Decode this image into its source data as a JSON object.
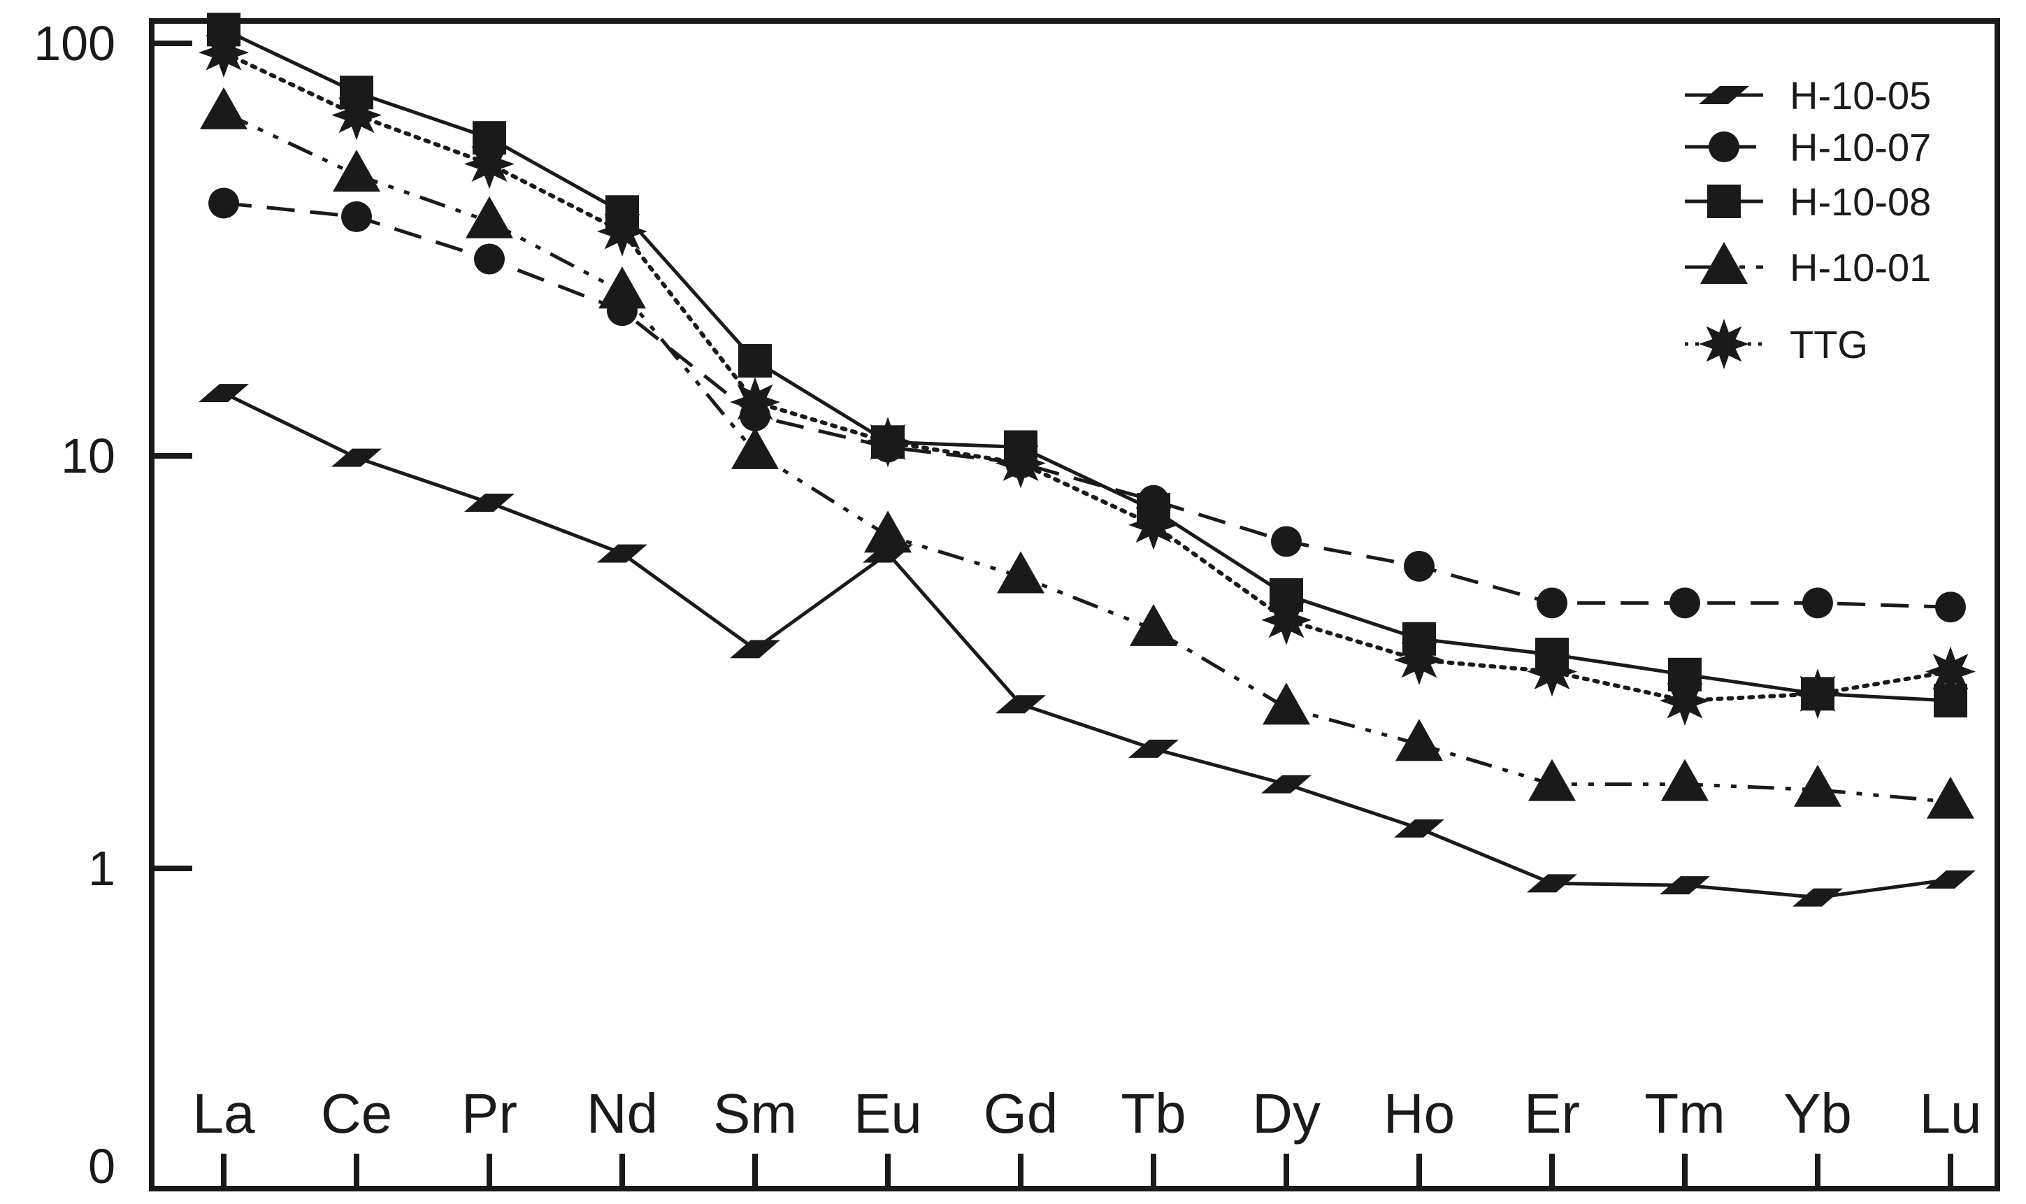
{
  "chart_data": {
    "type": "line",
    "y_scale": "log",
    "y_ticks": [
      {
        "label": "100",
        "value": 100
      },
      {
        "label": "10",
        "value": 10
      },
      {
        "label": "1",
        "value": 1
      },
      {
        "label": "0",
        "value": 0.1
      }
    ],
    "categories": [
      "La",
      "Ce",
      "Pr",
      "Nd",
      "Sm",
      "Eu",
      "Gd",
      "Tb",
      "Dy",
      "Ho",
      "Er",
      "Tm",
      "Yb",
      "Lu"
    ],
    "legend_position": "top-right",
    "grid": false,
    "series": [
      {
        "name": "H-10-05",
        "marker": "parallelogram",
        "line": "solid",
        "values": [
          14.2,
          9.9,
          7.7,
          5.8,
          3.4,
          5.8,
          2.5,
          1.95,
          1.6,
          1.25,
          0.92,
          0.91,
          0.85,
          0.94
        ]
      },
      {
        "name": "H-10-07",
        "marker": "circle",
        "line": "dashed",
        "values": [
          41,
          38,
          30,
          22.5,
          12.5,
          10.5,
          9.6,
          7.8,
          6.2,
          5.4,
          4.4,
          4.4,
          4.4,
          4.3
        ]
      },
      {
        "name": "H-10-08",
        "marker": "square",
        "line": "solid",
        "values": [
          108,
          76,
          59,
          39,
          17,
          10.8,
          10.5,
          7.4,
          4.6,
          3.6,
          3.3,
          2.95,
          2.65,
          2.55
        ]
      },
      {
        "name": "H-10-01",
        "marker": "triangle",
        "line": "dash-dot-dot",
        "values": [
          68,
          48,
          37,
          25,
          10.2,
          6.4,
          5.1,
          3.8,
          2.45,
          2.0,
          1.6,
          1.6,
          1.55,
          1.45
        ]
      },
      {
        "name": "TTG",
        "marker": "star",
        "line": "dotted",
        "values": [
          95,
          67,
          51,
          35,
          13.5,
          10.8,
          9.6,
          6.8,
          4.0,
          3.2,
          3.0,
          2.55,
          2.65,
          3.0
        ]
      }
    ]
  }
}
